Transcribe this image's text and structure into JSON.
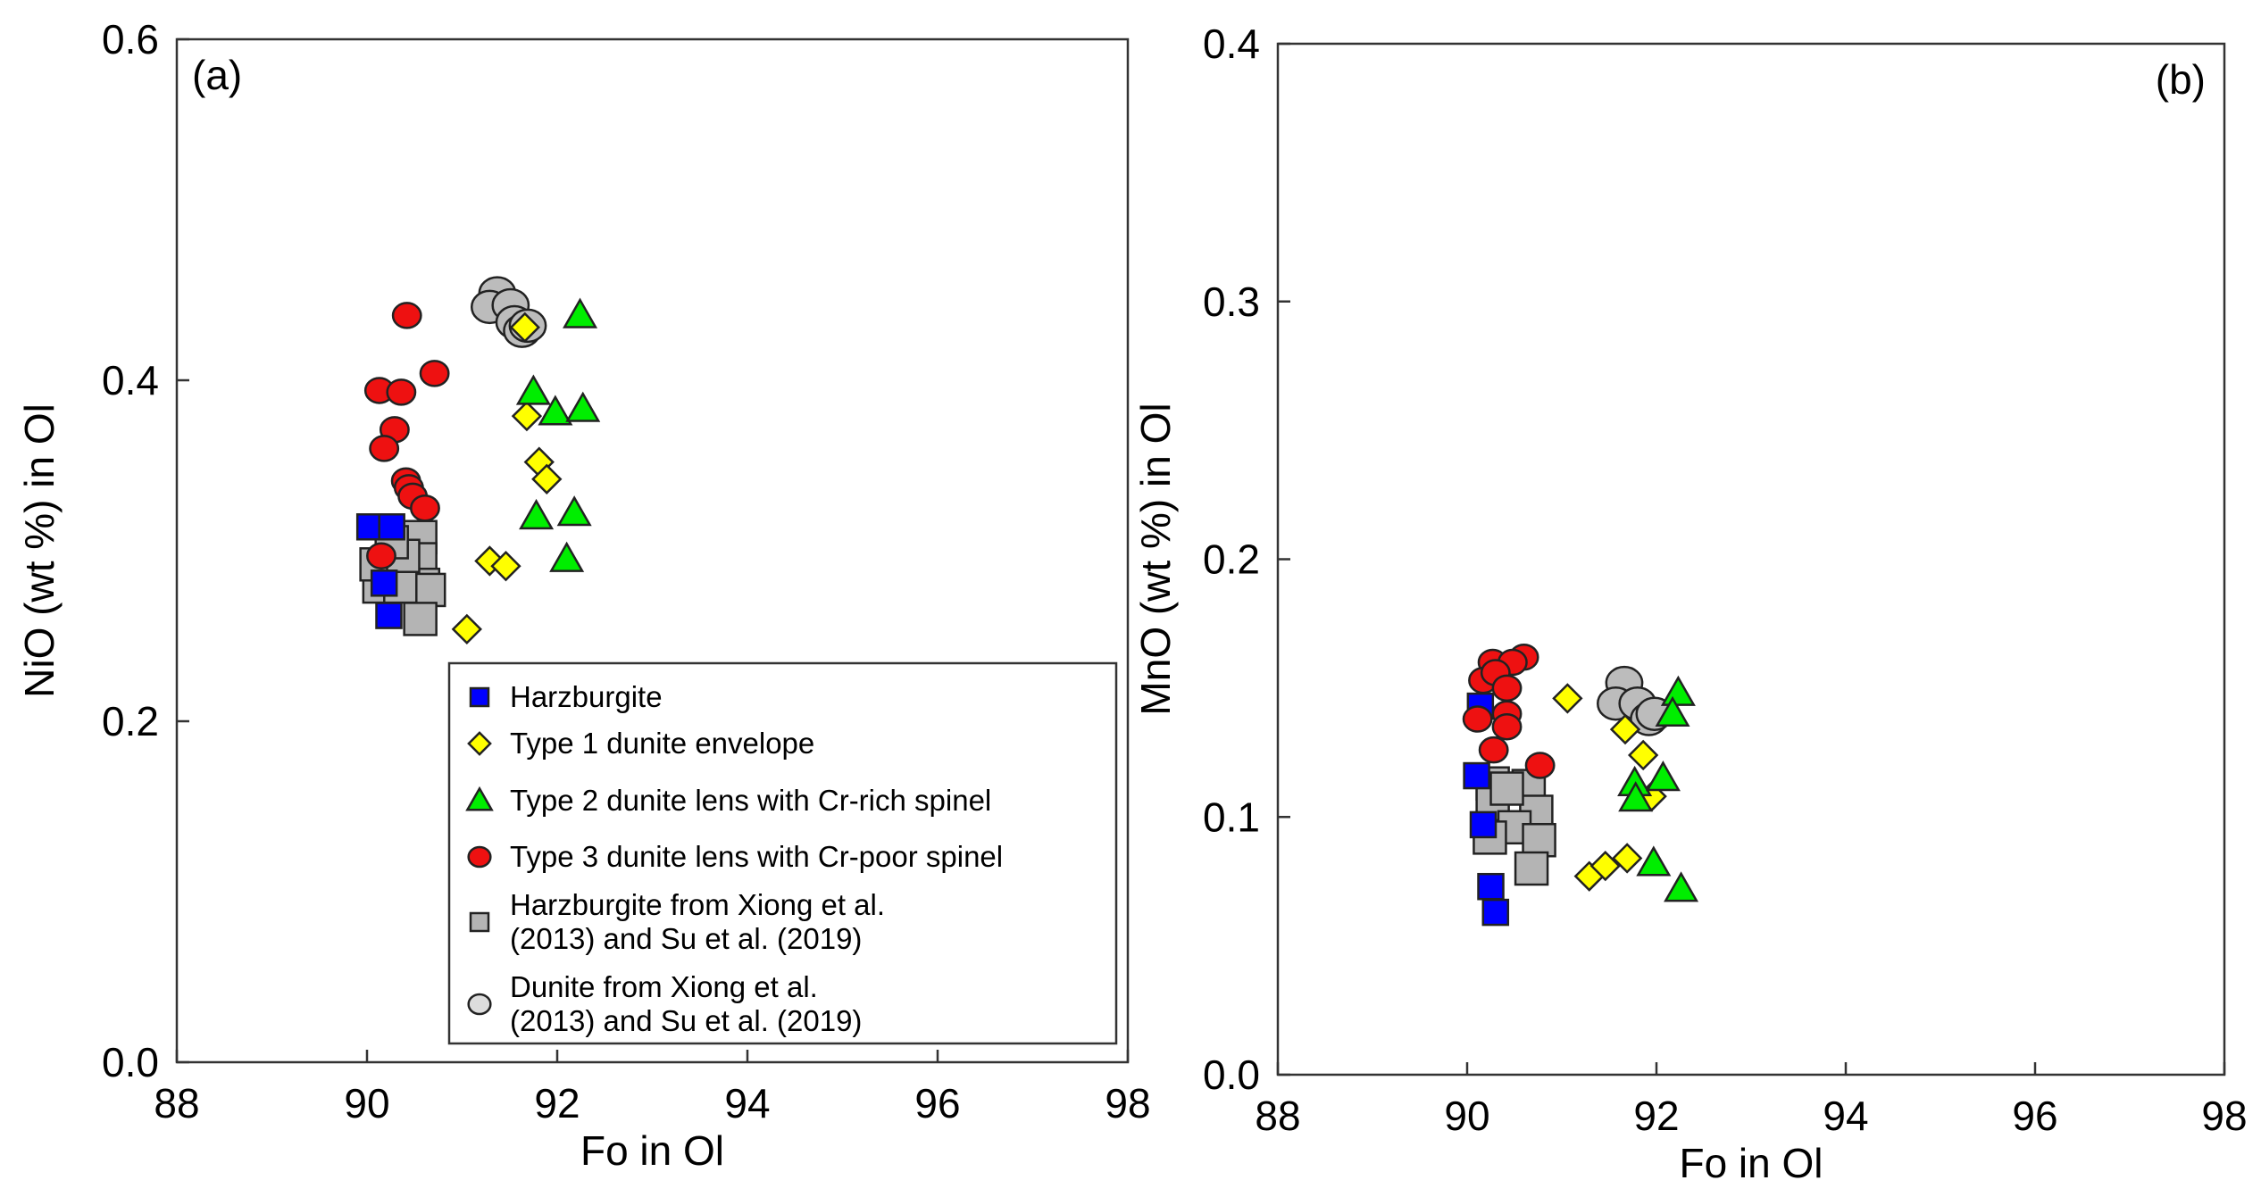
{
  "chart_data": [
    {
      "type": "scatter",
      "panel_label": "(a)",
      "xlabel": "Fo in Ol",
      "ylabel": "NiO (wt %) in Ol",
      "xlim": [
        88,
        98
      ],
      "ylim": [
        0,
        0.6
      ],
      "xticks": [
        "88",
        "90",
        "92",
        "94",
        "96",
        "98"
      ],
      "yticks": [
        "0.0",
        "0.2",
        "0.4",
        "0.6"
      ],
      "grid": false,
      "legend_placement": "bottom-right",
      "series": [
        {
          "name": "Harzburgite from Xiong et al. (2013) and Su et al. (2019)",
          "marker": "square",
          "color": "#b4b4b4",
          "size": "large",
          "x": [
            90.56,
            90.56,
            90.59,
            90.65,
            90.56,
            90.13,
            90.35,
            90.1,
            90.38,
            90.26
          ],
          "y": [
            0.308,
            0.295,
            0.28,
            0.277,
            0.26,
            0.279,
            0.279,
            0.292,
            0.297,
            0.305
          ]
        },
        {
          "name": "Dunite from Xiong et al. (2013) and Su et al. (2019)",
          "marker": "circle",
          "color": "#bcbcbc",
          "size": "large",
          "x": [
            91.37,
            91.29,
            91.51,
            91.55,
            91.63,
            91.69
          ],
          "y": [
            0.451,
            0.443,
            0.444,
            0.434,
            0.429,
            0.432
          ]
        },
        {
          "name": "Harzburgite",
          "marker": "square",
          "color": "#0000ff",
          "size": "normal",
          "x": [
            90.03,
            90.26,
            90.18,
            90.23
          ],
          "y": [
            0.314,
            0.314,
            0.281,
            0.262
          ]
        },
        {
          "name": "Type 3 dunite lens with Cr-poor spinel",
          "marker": "circle",
          "color": "#ee1111",
          "size": "normal",
          "x": [
            90.42,
            90.13,
            90.36,
            90.71,
            90.29,
            90.18,
            90.41,
            90.44,
            90.48,
            90.61,
            90.15
          ],
          "y": [
            0.438,
            0.394,
            0.393,
            0.404,
            0.371,
            0.36,
            0.341,
            0.337,
            0.332,
            0.325,
            0.297
          ]
        },
        {
          "name": "Type 1 dunite envelope",
          "marker": "diamond",
          "color": "#ffff00",
          "size": "normal",
          "x": [
            91.66,
            91.68,
            91.81,
            91.89,
            91.29,
            91.46,
            91.05
          ],
          "y": [
            0.431,
            0.379,
            0.352,
            0.342,
            0.294,
            0.291,
            0.254
          ]
        },
        {
          "name": "Type 2 dunite lens with Cr-rich spinel",
          "marker": "triangle",
          "color": "#00ee00",
          "size": "normal",
          "x": [
            92.24,
            91.75,
            91.98,
            92.27,
            91.78,
            92.18,
            92.1
          ],
          "y": [
            0.438,
            0.393,
            0.381,
            0.383,
            0.32,
            0.322,
            0.295
          ]
        }
      ],
      "legend": [
        {
          "label": "Harzburgite",
          "marker": "square",
          "color": "#0000ff"
        },
        {
          "label": "Type 1 dunite envelope",
          "marker": "diamond",
          "color": "#ffff00"
        },
        {
          "label": "Type 2 dunite lens with Cr-rich spinel",
          "marker": "triangle",
          "color": "#00ee00"
        },
        {
          "label": "Type 3 dunite lens with Cr-poor spinel",
          "marker": "circle",
          "color": "#ee1111"
        },
        {
          "label": "Harzburgite from Xiong et al.",
          "label2": "(2013) and Su et al. (2019)",
          "marker": "square",
          "color": "#b4b4b4"
        },
        {
          "label": "Dunite from Xiong et al.",
          "label2": "(2013) and Su et al. (2019)",
          "marker": "circle",
          "color": "#dddddd"
        }
      ]
    },
    {
      "type": "scatter",
      "panel_label": "(b)",
      "xlabel": "Fo in Ol",
      "ylabel": "MnO (wt %) in Ol",
      "xlim": [
        88,
        98
      ],
      "ylim": [
        0,
        0.4
      ],
      "xticks": [
        "88",
        "90",
        "92",
        "94",
        "96",
        "98"
      ],
      "yticks": [
        "0.0",
        "0.1",
        "0.2",
        "0.3",
        "0.4"
      ],
      "grid": false,
      "series": [
        {
          "name": "Harzburgite from Xiong et al. (2013) and Su et al. (2019)",
          "marker": "square",
          "color": "#b4b4b4",
          "size": "large",
          "x": [
            90.27,
            90.65,
            90.73,
            90.27,
            90.5,
            90.76,
            90.24,
            90.68,
            90.42
          ],
          "y": [
            0.113,
            0.112,
            0.102,
            0.105,
            0.096,
            0.091,
            0.092,
            0.08,
            0.111
          ]
        },
        {
          "name": "Dunite from Xiong et al. (2013) and Su et al. (2019)",
          "marker": "circle",
          "color": "#bcbcbc",
          "size": "large",
          "x": [
            91.66,
            91.57,
            91.8,
            91.92,
            91.98
          ],
          "y": [
            0.152,
            0.144,
            0.144,
            0.138,
            0.14
          ]
        },
        {
          "name": "Harzburgite",
          "marker": "square",
          "color": "#0000ff",
          "size": "normal",
          "x": [
            90.14,
            90.1,
            90.17,
            90.25,
            90.3
          ],
          "y": [
            0.143,
            0.116,
            0.097,
            0.073,
            0.063
          ]
        },
        {
          "name": "Type 3 dunite lens with Cr-poor spinel",
          "marker": "circle",
          "color": "#ee1111",
          "size": "normal",
          "x": [
            90.27,
            90.6,
            90.48,
            90.17,
            90.3,
            90.42,
            90.42,
            90.42,
            90.11,
            90.28,
            90.77
          ],
          "y": [
            0.16,
            0.162,
            0.16,
            0.153,
            0.156,
            0.15,
            0.14,
            0.135,
            0.138,
            0.126,
            0.12
          ]
        },
        {
          "name": "Type 1 dunite envelope",
          "marker": "diamond",
          "color": "#ffff00",
          "size": "normal",
          "x": [
            91.06,
            91.67,
            91.86,
            91.95,
            91.29,
            91.46,
            91.69
          ],
          "y": [
            0.146,
            0.134,
            0.124,
            0.108,
            0.077,
            0.081,
            0.084
          ]
        },
        {
          "name": "Type 2 dunite lens with Cr-rich spinel",
          "marker": "triangle",
          "color": "#00ee00",
          "size": "normal",
          "x": [
            92.23,
            92.17,
            91.77,
            91.78,
            92.07,
            91.97,
            92.26
          ],
          "y": [
            0.148,
            0.14,
            0.113,
            0.107,
            0.115,
            0.082,
            0.072
          ]
        }
      ]
    }
  ]
}
